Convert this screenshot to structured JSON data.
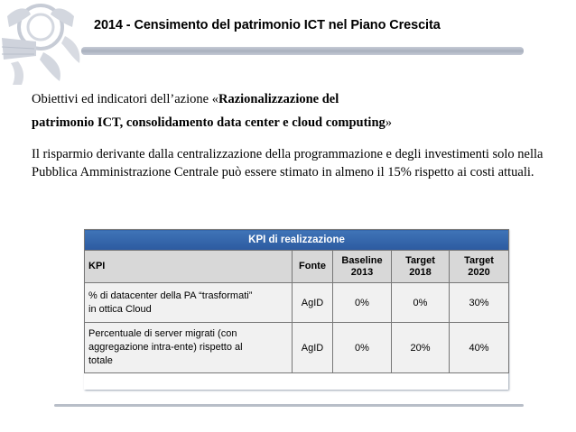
{
  "header": {
    "title": "2014 - Censimento del patrimonio ICT nel Piano Crescita",
    "logo_icon": "venetian-lion-crest-icon"
  },
  "objective": {
    "intro": "Obiettivi ed indicatori dell’azione «",
    "bold_line1": "Razionalizzazione del",
    "bold_line2": "patrimonio ICT,  consolidamento data center e cloud computing",
    "closing": "»"
  },
  "paragraph": "Il risparmio derivante dalla centralizzazione della programmazione e degli investimenti solo nella Pubblica Amministrazione Centrale può essere stimato in almeno il 15% rispetto ai costi attuali.",
  "kpi_table": {
    "title": "KPI di realizzazione",
    "header_color": "#2f5fa6",
    "columns": {
      "kpi": "KPI",
      "fonte": "Fonte",
      "baseline_l1": "Baseline",
      "baseline_l2": "2013",
      "target1_l1": "Target",
      "target1_l2": "2018",
      "target2_l1": "Target",
      "target2_l2": "2020"
    },
    "rows": [
      {
        "kpi_l1": "% di datacenter della PA “trasformati”",
        "kpi_l2": "in ottica Cloud",
        "kpi_l3": "",
        "fonte": "AgID",
        "baseline": "0%",
        "target_2018": "0%",
        "target_2020": "30%"
      },
      {
        "kpi_l1": "Percentuale di server migrati (con",
        "kpi_l2": "aggregazione intra-ente) rispetto al",
        "kpi_l3": "totale",
        "fonte": "AgID",
        "baseline": "0%",
        "target_2018": "20%",
        "target_2020": "40%"
      }
    ]
  }
}
